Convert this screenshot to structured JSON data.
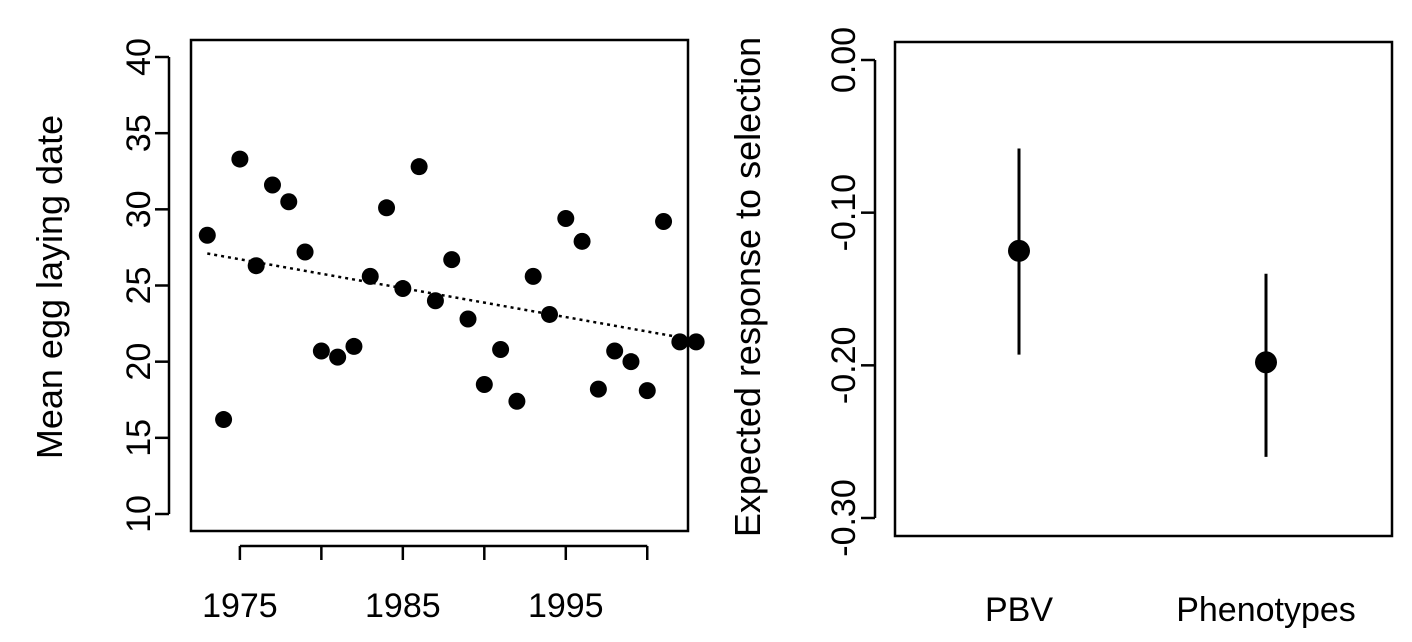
{
  "chart_data": [
    {
      "type": "scatter",
      "title": "",
      "xlabel": "",
      "ylabel": "Mean egg laying date",
      "xlim": [
        1972,
        2002.5
      ],
      "ylim": [
        10,
        40
      ],
      "x_ticks": [
        1975,
        1985,
        1995
      ],
      "x_tick_labels": [
        "1975",
        "1985",
        "1995"
      ],
      "y_ticks": [
        10,
        15,
        20,
        25,
        30,
        35,
        40
      ],
      "y_tick_labels": [
        "10",
        "15",
        "20",
        "25",
        "30",
        "35",
        "40"
      ],
      "grid": false,
      "points": [
        {
          "x": 1973,
          "y": 28.3
        },
        {
          "x": 1974,
          "y": 16.2
        },
        {
          "x": 1975,
          "y": 33.3
        },
        {
          "x": 1976,
          "y": 26.3
        },
        {
          "x": 1977,
          "y": 31.6
        },
        {
          "x": 1978,
          "y": 30.5
        },
        {
          "x": 1979,
          "y": 27.2
        },
        {
          "x": 1980,
          "y": 20.7
        },
        {
          "x": 1981,
          "y": 20.3
        },
        {
          "x": 1982,
          "y": 21.0
        },
        {
          "x": 1983,
          "y": 25.6
        },
        {
          "x": 1984,
          "y": 30.1
        },
        {
          "x": 1985,
          "y": 24.8
        },
        {
          "x": 1986,
          "y": 32.8
        },
        {
          "x": 1987,
          "y": 24.0
        },
        {
          "x": 1988,
          "y": 26.7
        },
        {
          "x": 1989,
          "y": 22.8
        },
        {
          "x": 1990,
          "y": 18.5
        },
        {
          "x": 1991,
          "y": 20.8
        },
        {
          "x": 1992,
          "y": 17.4
        },
        {
          "x": 1993,
          "y": 25.6
        },
        {
          "x": 1994,
          "y": 23.1
        },
        {
          "x": 1995,
          "y": 29.4
        },
        {
          "x": 1996,
          "y": 27.9
        },
        {
          "x": 1997,
          "y": 18.2
        },
        {
          "x": 1998,
          "y": 20.7
        },
        {
          "x": 1999,
          "y": 20.0
        },
        {
          "x": 2000,
          "y": 18.1
        },
        {
          "x": 2001,
          "y": 29.2
        },
        {
          "x": 2002,
          "y": 21.3
        },
        {
          "x": 2003,
          "y": 21.3
        }
      ],
      "trend_line": {
        "style": "dotted",
        "start": {
          "x": 1973,
          "y": 27.1
        },
        "end": {
          "x": 2002,
          "y": 21.6
        }
      }
    },
    {
      "type": "errorbar",
      "title": "",
      "xlabel": "",
      "ylabel": "Expected response to selection",
      "ylim": [
        -0.32,
        0.0
      ],
      "y_ticks": [
        0.0,
        -0.1,
        -0.2,
        -0.3
      ],
      "y_tick_labels": [
        "0.00",
        "-0.10",
        "-0.20",
        "-0.30"
      ],
      "categories": [
        "PBV",
        "Phenotypes"
      ],
      "grid": false,
      "estimates": [
        {
          "category": "PBV",
          "value": -0.125,
          "lower": -0.193,
          "upper": -0.058
        },
        {
          "category": "Phenotypes",
          "value": -0.198,
          "lower": -0.26,
          "upper": -0.14
        }
      ]
    }
  ]
}
